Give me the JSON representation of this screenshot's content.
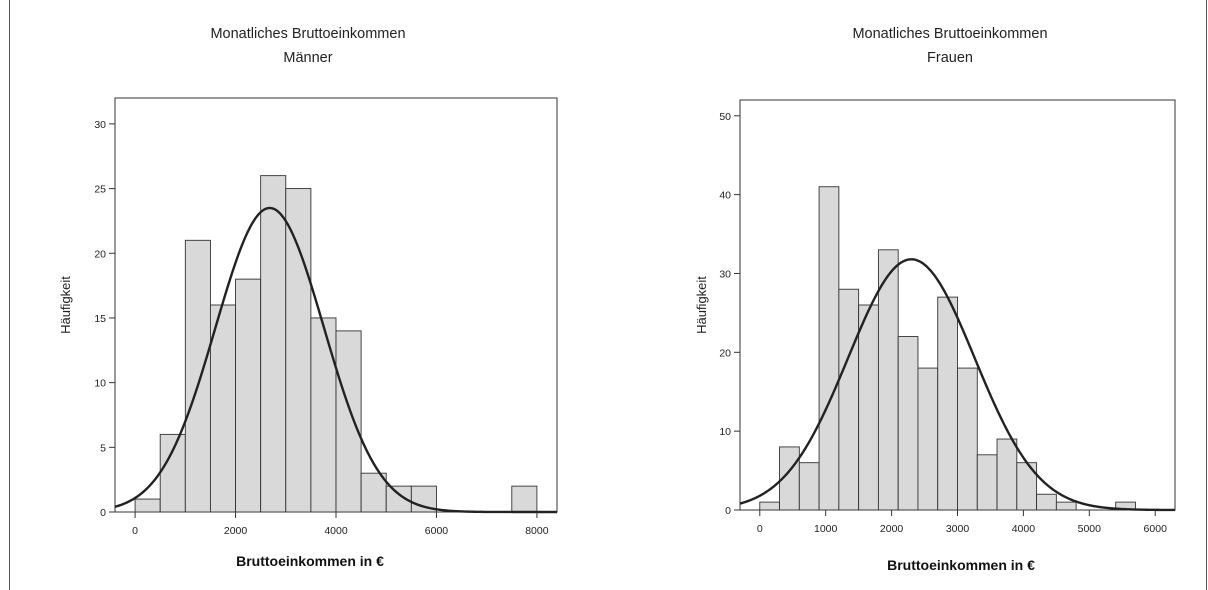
{
  "chart_data": [
    {
      "type": "bar",
      "title": "Monatliches Bruttoeinkommen",
      "subtitle": "Männer",
      "xlabel": "Bruttoeinkommen in €",
      "ylabel": "Häufigkeit",
      "xlim": [
        -400,
        8400
      ],
      "ylim": [
        0,
        32
      ],
      "xticks": [
        0,
        2000,
        4000,
        6000,
        8000
      ],
      "yticks": [
        0,
        5,
        10,
        15,
        20,
        25,
        30
      ],
      "bin_width": 500,
      "bins": [
        {
          "x0": 0,
          "count": 1
        },
        {
          "x0": 500,
          "count": 6
        },
        {
          "x0": 1000,
          "count": 21
        },
        {
          "x0": 1500,
          "count": 16
        },
        {
          "x0": 2000,
          "count": 18
        },
        {
          "x0": 2500,
          "count": 26
        },
        {
          "x0": 3000,
          "count": 25
        },
        {
          "x0": 3500,
          "count": 15
        },
        {
          "x0": 4000,
          "count": 14
        },
        {
          "x0": 4500,
          "count": 3
        },
        {
          "x0": 5000,
          "count": 2
        },
        {
          "x0": 5500,
          "count": 2
        },
        {
          "x0": 7500,
          "count": 2
        }
      ],
      "normal_curve": {
        "mean": 2680,
        "sd": 1080,
        "peak": 23.5
      },
      "grid": false,
      "bar_color": "#d9d9d9",
      "curve_color": "#222222"
    },
    {
      "type": "bar",
      "title": "Monatliches Bruttoeinkommen",
      "subtitle": "Frauen",
      "xlabel": "Bruttoeinkommen in €",
      "ylabel": "Häufigkeit",
      "xlim": [
        -300,
        6300
      ],
      "ylim": [
        0,
        52
      ],
      "xticks": [
        0,
        1000,
        2000,
        3000,
        4000,
        5000,
        6000
      ],
      "yticks": [
        0,
        10,
        20,
        30,
        40,
        50
      ],
      "bin_width": 300,
      "bins": [
        {
          "x0": 0,
          "count": 1
        },
        {
          "x0": 300,
          "count": 8
        },
        {
          "x0": 600,
          "count": 6
        },
        {
          "x0": 900,
          "count": 41
        },
        {
          "x0": 1200,
          "count": 28
        },
        {
          "x0": 1500,
          "count": 26
        },
        {
          "x0": 1800,
          "count": 33
        },
        {
          "x0": 2100,
          "count": 22
        },
        {
          "x0": 2400,
          "count": 18
        },
        {
          "x0": 2700,
          "count": 27
        },
        {
          "x0": 3000,
          "count": 18
        },
        {
          "x0": 3300,
          "count": 7
        },
        {
          "x0": 3600,
          "count": 9
        },
        {
          "x0": 3900,
          "count": 6
        },
        {
          "x0": 4200,
          "count": 2
        },
        {
          "x0": 4500,
          "count": 1
        },
        {
          "x0": 5400,
          "count": 1
        }
      ],
      "normal_curve": {
        "mean": 2300,
        "sd": 960,
        "peak": 31.8
      },
      "grid": false,
      "bar_color": "#d9d9d9",
      "curve_color": "#222222"
    }
  ]
}
